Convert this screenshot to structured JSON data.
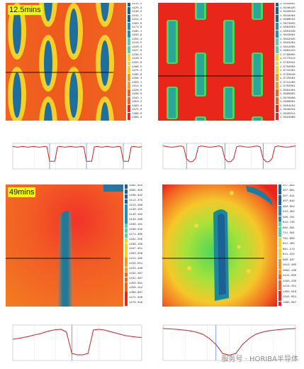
{
  "panels": {
    "top_left_map": {
      "time_label": "12.5mins",
      "legend_values": [
        "1115.256",
        "1125.351",
        "1136.062",
        "1144.721",
        "1154.415",
        "1163.955",
        "1173.620",
        "1185.184",
        "1193.812",
        "1202.486",
        "1210.552",
        "1220.301",
        "1227.980",
        "1236.541",
        "1246.318",
        "1255.870",
        "1266.503",
        "1275.430",
        "1285.998",
        "1296.480",
        "1303.112",
        "1314.875",
        "1326.554",
        "1336.801",
        "1342.112",
        "1353.210",
        "1363.405",
        "1375.011",
        "1386.006",
        "1396.475"
      ]
    },
    "top_right_map": {
      "legend_values": [
        "1.5956601",
        "1.5946425",
        "1.5926533",
        "1.5916404",
        "1.5898532",
        "1.5873055",
        "1.5862003",
        "1.5853340",
        "1.5843001",
        "1.5832345",
        "1.5823204",
        "1.5812005",
        "1.5802223",
        "1.5790005",
        "1.5773313",
        "1.5762041",
        "1.5750004",
        "1.5742201",
        "1.5733040",
        "1.5725504",
        "1.5712405",
        "1.5702001",
        "1.5694404",
        "1.5685002",
        "1.5676606",
        "1.5666001",
        "1.5654102",
        "1.5640234",
        "1.5635014",
        "1.5624666"
      ]
    },
    "mid_left_map": {
      "time_label": "49mins",
      "legend_values": [
        "1085.804",
        "1095.350",
        "1106.442",
        "1112.475",
        "1123.486",
        "1130.155",
        "1140.182",
        "1149.268",
        "1160.101",
        "1166.245",
        "1174.305",
        "1181.250",
        "1189.106",
        "1197.451",
        "1203.256",
        "1212.165",
        "1220.551",
        "1224.440",
        "1232.387",
        "1241.387",
        "1250.301",
        "1258.112",
        "1266.887",
        "1271.020",
        "1278.316"
      ]
    },
    "mid_right_map": {
      "legend_values": [
        "257.664",
        "307.661",
        "357.811",
        "407.644",
        "462.054",
        "512.362",
        "560.761",
        "612.740",
        "662.561",
        "711.561",
        "761.050",
        "811.265",
        "861.174",
        "911.224",
        "960.347",
        "1012.365",
        "1062.136",
        "1112.005",
        "1163.235",
        "1214.251",
        "1263.016",
        "1315.051",
        "1365.097"
      ]
    },
    "watermark": {
      "text": "服务号 · HORIBA半导体"
    }
  },
  "colors": {
    "orange": "#f05a1e",
    "red": "#e8261a",
    "yellow": "#f5cf2a",
    "blue": "#1e6f9e",
    "teal": "#2aa79a",
    "green": "#4ad85a",
    "profile_red": "#cc2222",
    "profile_blue": "#3366cc"
  },
  "chart_data": [
    {
      "type": "line",
      "series": [
        {
          "values": [
            0.88,
            0.86,
            0.85,
            0.87,
            0.88,
            0.86,
            0.85,
            0.87,
            0.88,
            0.86,
            0.85,
            0.86,
            0.88,
            0.86,
            0.3,
            0.3,
            0.3,
            0.86,
            0.88,
            0.86,
            0.85,
            0.87,
            0.88,
            0.86,
            0.85,
            0.86,
            0.88,
            0.86,
            0.3,
            0.3,
            0.3,
            0.86,
            0.88,
            0.86,
            0.85,
            0.87,
            0.88,
            0.86,
            0.85,
            0.86,
            0.88,
            0.86,
            0.3,
            0.3,
            0.3,
            0.86,
            0.88,
            0.86,
            0.85,
            0.87
          ]
        }
      ]
    },
    {
      "type": "line",
      "series": [
        {
          "values": [
            0.9,
            0.88,
            0.86,
            0.85,
            0.86,
            0.88,
            0.9,
            0.86,
            0.4,
            0.28,
            0.28,
            0.4,
            0.86,
            0.9,
            0.88,
            0.86,
            0.85,
            0.86,
            0.88,
            0.9,
            0.86,
            0.4,
            0.28,
            0.28,
            0.4,
            0.86,
            0.9,
            0.88,
            0.86,
            0.85,
            0.86,
            0.88,
            0.9,
            0.86,
            0.4,
            0.28,
            0.28,
            0.4,
            0.86,
            0.9,
            0.88,
            0.86,
            0.85,
            0.86,
            0.88,
            0.9
          ]
        }
      ]
    },
    {
      "type": "line",
      "series": [
        {
          "values": [
            0.6,
            0.62,
            0.65,
            0.68,
            0.72,
            0.75,
            0.8,
            0.84,
            0.87,
            0.88,
            0.8,
            0.2,
            0.16,
            0.16,
            0.2,
            0.86,
            0.88,
            0.86,
            0.82,
            0.78,
            0.74,
            0.7,
            0.68,
            0.66,
            0.65
          ]
        }
      ]
    },
    {
      "type": "line",
      "series": [
        {
          "values": [
            0.9,
            0.89,
            0.88,
            0.86,
            0.84,
            0.8,
            0.74,
            0.62,
            0.45,
            0.2,
            0.15,
            0.2,
            0.45,
            0.62,
            0.74,
            0.8,
            0.84,
            0.86,
            0.88,
            0.89,
            0.9
          ]
        }
      ]
    }
  ]
}
